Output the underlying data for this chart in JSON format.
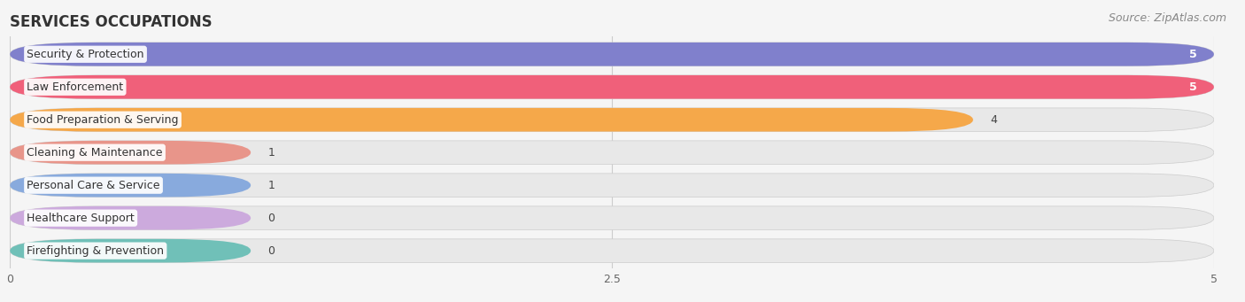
{
  "title": "SERVICES OCCUPATIONS",
  "source": "Source: ZipAtlas.com",
  "categories": [
    "Security & Protection",
    "Law Enforcement",
    "Food Preparation & Serving",
    "Cleaning & Maintenance",
    "Personal Care & Service",
    "Healthcare Support",
    "Firefighting & Prevention"
  ],
  "values": [
    5,
    5,
    4,
    1,
    1,
    0,
    0
  ],
  "display_values": [
    "5",
    "5",
    "4",
    "1",
    "1",
    "0",
    "0"
  ],
  "bar_colors": [
    "#8080cc",
    "#f0607a",
    "#f5a84a",
    "#e8958a",
    "#88aadd",
    "#ccaadd",
    "#70c0b8"
  ],
  "bar_bg_color": "#e8e8e8",
  "bar_bg_border_color": "#d0d0d0",
  "xlim": [
    0,
    5
  ],
  "xticks": [
    0,
    2.5,
    5
  ],
  "background_color": "#f5f5f5",
  "title_fontsize": 12,
  "source_fontsize": 9,
  "label_fontsize": 9,
  "value_fontsize": 9,
  "bar_height": 0.72,
  "min_bar_display": 1.0
}
